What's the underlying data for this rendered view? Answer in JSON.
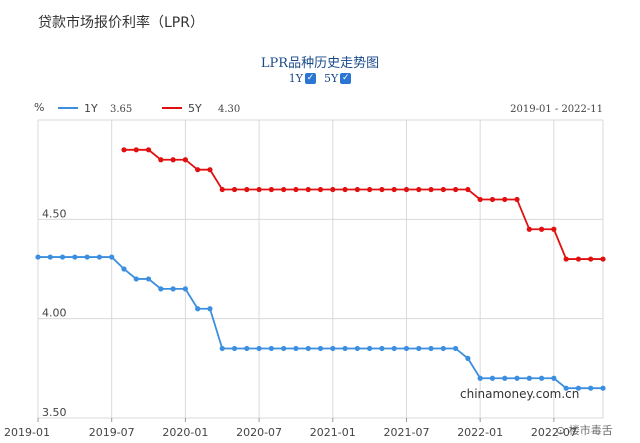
{
  "page": {
    "title": "贷款市场报价利率（LPR）"
  },
  "toggles": [
    {
      "label": "1Y",
      "checked": true,
      "check_glyph": "✓"
    },
    {
      "label": "5Y",
      "checked": true,
      "check_glyph": "✓"
    }
  ],
  "watermark": "chinamoney.com.cn",
  "logo_text": "楼市毒舌",
  "colors": {
    "series_1y": "#3b8ee0",
    "series_5y": "#e01010",
    "grid": "#d9d9d9",
    "axis_text": "#444444"
  },
  "chart_data": {
    "type": "line",
    "title": "LPR品种历史走势图",
    "unit": "%",
    "range_label": "2019-01 - 2022-11",
    "ylim": [
      3.5,
      5.0
    ],
    "yticks": [
      3.5,
      4.0,
      4.5
    ],
    "ytick_labels": [
      "3.50",
      "4.00",
      "4.50"
    ],
    "xlim": [
      "2019-01",
      "2022-11"
    ],
    "xticks": [
      "2019-01",
      "2019-07",
      "2020-01",
      "2020-07",
      "2021-01",
      "2021-07",
      "2022-01",
      "2022-07"
    ],
    "grid": true,
    "legend": {
      "placement": "top-left",
      "entries": [
        {
          "name": "1Y",
          "value_label": "3.65"
        },
        {
          "name": "5Y",
          "value_label": "4.30"
        }
      ]
    },
    "series": [
      {
        "name": "1Y",
        "x": [
          "2019-01",
          "2019-02",
          "2019-03",
          "2019-04",
          "2019-05",
          "2019-06",
          "2019-07",
          "2019-08",
          "2019-09",
          "2019-10",
          "2019-11",
          "2019-12",
          "2020-01",
          "2020-02",
          "2020-03",
          "2020-04",
          "2020-05",
          "2020-06",
          "2020-07",
          "2020-08",
          "2020-09",
          "2020-10",
          "2020-11",
          "2020-12",
          "2021-01",
          "2021-02",
          "2021-03",
          "2021-04",
          "2021-05",
          "2021-06",
          "2021-07",
          "2021-08",
          "2021-09",
          "2021-10",
          "2021-11",
          "2021-12",
          "2022-01",
          "2022-02",
          "2022-03",
          "2022-04",
          "2022-05",
          "2022-06",
          "2022-07",
          "2022-08",
          "2022-09",
          "2022-10",
          "2022-11"
        ],
        "values": [
          4.31,
          4.31,
          4.31,
          4.31,
          4.31,
          4.31,
          4.31,
          4.25,
          4.2,
          4.2,
          4.15,
          4.15,
          4.15,
          4.05,
          4.05,
          3.85,
          3.85,
          3.85,
          3.85,
          3.85,
          3.85,
          3.85,
          3.85,
          3.85,
          3.85,
          3.85,
          3.85,
          3.85,
          3.85,
          3.85,
          3.85,
          3.85,
          3.85,
          3.85,
          3.85,
          3.8,
          3.7,
          3.7,
          3.7,
          3.7,
          3.7,
          3.7,
          3.7,
          3.65,
          3.65,
          3.65,
          3.65
        ]
      },
      {
        "name": "5Y",
        "x": [
          "2019-08",
          "2019-09",
          "2019-10",
          "2019-11",
          "2019-12",
          "2020-01",
          "2020-02",
          "2020-03",
          "2020-04",
          "2020-05",
          "2020-06",
          "2020-07",
          "2020-08",
          "2020-09",
          "2020-10",
          "2020-11",
          "2020-12",
          "2021-01",
          "2021-02",
          "2021-03",
          "2021-04",
          "2021-05",
          "2021-06",
          "2021-07",
          "2021-08",
          "2021-09",
          "2021-10",
          "2021-11",
          "2021-12",
          "2022-01",
          "2022-02",
          "2022-03",
          "2022-04",
          "2022-05",
          "2022-06",
          "2022-07",
          "2022-08",
          "2022-09",
          "2022-10",
          "2022-11"
        ],
        "values": [
          4.85,
          4.85,
          4.85,
          4.8,
          4.8,
          4.8,
          4.75,
          4.75,
          4.65,
          4.65,
          4.65,
          4.65,
          4.65,
          4.65,
          4.65,
          4.65,
          4.65,
          4.65,
          4.65,
          4.65,
          4.65,
          4.65,
          4.65,
          4.65,
          4.65,
          4.65,
          4.65,
          4.65,
          4.65,
          4.6,
          4.6,
          4.6,
          4.6,
          4.45,
          4.45,
          4.45,
          4.3,
          4.3,
          4.3,
          4.3
        ]
      }
    ]
  }
}
